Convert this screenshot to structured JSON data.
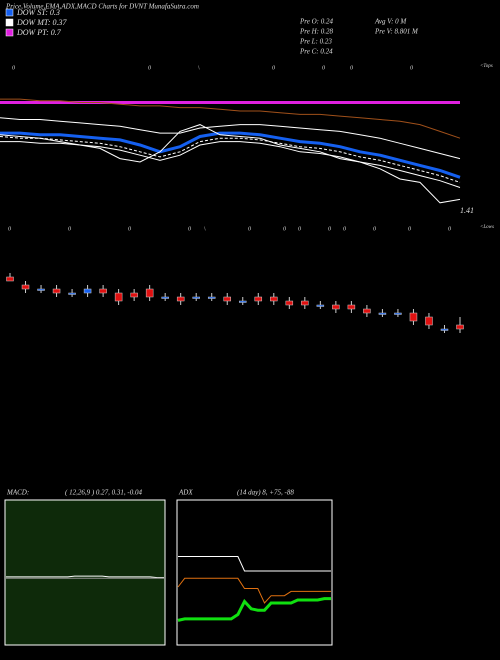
{
  "header": {
    "title": "Price,Volume,EMA,ADX,MACD Charts for DVNT MunafaSutra.com",
    "legend": [
      {
        "name": "DOW ST: 0.3",
        "color": "#1560f0"
      },
      {
        "name": "DOW MT: 0.37",
        "color": "#ffffff"
      },
      {
        "name": "DOW PT: 0.7",
        "color": "#e020e0"
      }
    ],
    "stats": [
      "Pre  O: 0.24",
      "Pre  H: 0.28",
      "Pre  L: 0.23",
      "Pre  C: 0.24"
    ],
    "volume": [
      "Avg  V: 0  M",
      "Pre  V: 8.801 M"
    ]
  },
  "chart_data": [
    {
      "type": "line",
      "ylim": [
        1.3,
        2.3
      ],
      "price_label": "1.41",
      "top_labels": [
        "0",
        "0",
        "\\",
        "0",
        "0",
        "0",
        "0"
      ],
      "top_note": "<Tops",
      "bottom_labels": [
        "0",
        "0",
        "0",
        "0",
        "\\",
        "0",
        "0",
        "0",
        "0",
        "0",
        "0",
        "0",
        "0"
      ],
      "bottom_note": "<Lows",
      "series": [
        {
          "color": "#e020e0",
          "width": 3,
          "values": [
            2.05,
            2.05,
            2.05,
            2.05,
            2.05,
            2.05,
            2.05,
            2.05,
            2.05,
            2.05,
            2.05,
            2.05,
            2.05,
            2.05,
            2.05,
            2.05,
            2.05,
            2.05,
            2.05,
            2.05,
            2.05,
            2.05,
            2.05,
            2.05
          ]
        },
        {
          "color": "#a0501a",
          "width": 1,
          "values": [
            2.07,
            2.07,
            2.06,
            2.06,
            2.05,
            2.05,
            2.04,
            2.03,
            2.03,
            2.02,
            2.02,
            2.01,
            2.0,
            2.0,
            1.99,
            1.98,
            1.98,
            1.97,
            1.96,
            1.95,
            1.94,
            1.92,
            1.88,
            1.84
          ]
        },
        {
          "color": "#ffffff",
          "width": 1,
          "values": [
            1.96,
            1.95,
            1.95,
            1.94,
            1.93,
            1.92,
            1.91,
            1.89,
            1.87,
            1.87,
            1.9,
            1.91,
            1.92,
            1.92,
            1.91,
            1.9,
            1.89,
            1.88,
            1.86,
            1.84,
            1.81,
            1.78,
            1.75,
            1.72
          ]
        },
        {
          "color": "#1560f0",
          "width": 3,
          "values": [
            1.87,
            1.87,
            1.86,
            1.86,
            1.85,
            1.84,
            1.83,
            1.8,
            1.76,
            1.79,
            1.85,
            1.87,
            1.87,
            1.86,
            1.84,
            1.82,
            1.81,
            1.79,
            1.76,
            1.74,
            1.71,
            1.68,
            1.65,
            1.61
          ]
        },
        {
          "color": "#ffffff",
          "width": 1,
          "dash": true,
          "values": [
            1.85,
            1.84,
            1.84,
            1.83,
            1.82,
            1.81,
            1.79,
            1.76,
            1.73,
            1.76,
            1.82,
            1.84,
            1.84,
            1.83,
            1.81,
            1.79,
            1.78,
            1.76,
            1.73,
            1.71,
            1.68,
            1.65,
            1.62,
            1.58
          ]
        },
        {
          "color": "#ffffff",
          "width": 1,
          "values": [
            1.82,
            1.82,
            1.81,
            1.81,
            1.8,
            1.79,
            1.77,
            1.74,
            1.71,
            1.74,
            1.8,
            1.82,
            1.82,
            1.81,
            1.79,
            1.76,
            1.75,
            1.73,
            1.7,
            1.68,
            1.65,
            1.62,
            1.59,
            1.55
          ]
        },
        {
          "color": "#ffffff",
          "width": 1,
          "values": [
            1.86,
            1.85,
            1.84,
            1.82,
            1.8,
            1.78,
            1.72,
            1.7,
            1.76,
            1.88,
            1.92,
            1.86,
            1.85,
            1.84,
            1.8,
            1.78,
            1.76,
            1.72,
            1.7,
            1.66,
            1.6,
            1.58,
            1.46,
            1.48
          ]
        }
      ]
    },
    {
      "type": "candlestick",
      "ylim": [
        0.2,
        0.4
      ],
      "up_color": "#1560f0",
      "down_color": "#e01010",
      "open": [
        0.37,
        0.35,
        0.34,
        0.34,
        0.33,
        0.33,
        0.34,
        0.33,
        0.33,
        0.34,
        0.32,
        0.32,
        0.32,
        0.32,
        0.32,
        0.31,
        0.32,
        0.32,
        0.31,
        0.31,
        0.3,
        0.3,
        0.3,
        0.29,
        0.28,
        0.28,
        0.28,
        0.27,
        0.24,
        0.25
      ],
      "close": [
        0.36,
        0.34,
        0.34,
        0.33,
        0.33,
        0.34,
        0.33,
        0.31,
        0.32,
        0.32,
        0.32,
        0.31,
        0.32,
        0.32,
        0.31,
        0.31,
        0.31,
        0.31,
        0.3,
        0.3,
        0.3,
        0.29,
        0.29,
        0.28,
        0.28,
        0.28,
        0.26,
        0.25,
        0.24,
        0.24
      ],
      "high": [
        0.38,
        0.36,
        0.35,
        0.35,
        0.34,
        0.35,
        0.35,
        0.34,
        0.34,
        0.35,
        0.33,
        0.33,
        0.33,
        0.33,
        0.33,
        0.32,
        0.33,
        0.33,
        0.32,
        0.32,
        0.31,
        0.31,
        0.31,
        0.3,
        0.29,
        0.29,
        0.29,
        0.28,
        0.25,
        0.27
      ],
      "low": [
        0.36,
        0.33,
        0.33,
        0.32,
        0.32,
        0.32,
        0.32,
        0.3,
        0.31,
        0.31,
        0.31,
        0.3,
        0.31,
        0.31,
        0.3,
        0.3,
        0.3,
        0.3,
        0.29,
        0.29,
        0.29,
        0.28,
        0.28,
        0.27,
        0.27,
        0.27,
        0.25,
        0.24,
        0.23,
        0.23
      ]
    },
    {
      "type": "line",
      "title": "MACD:",
      "subtitle": "( 12,26,9 ) 0.27, 0.31, -0.04",
      "ylim": [
        -1,
        1
      ],
      "background": "#0e2a0a",
      "series": [
        {
          "color": "#ffffff",
          "width": 1,
          "values": [
            -0.06,
            -0.06,
            -0.06,
            -0.06,
            -0.06,
            -0.06,
            -0.06,
            -0.06,
            -0.06,
            -0.06,
            -0.05,
            -0.05,
            -0.05,
            -0.05,
            -0.05,
            -0.06,
            -0.06,
            -0.06,
            -0.06,
            -0.06,
            -0.06,
            -0.06,
            -0.07,
            -0.07
          ]
        },
        {
          "color": "#909090",
          "width": 1,
          "values": [
            -0.08,
            -0.08,
            -0.08,
            -0.08,
            -0.08,
            -0.08,
            -0.08,
            -0.08,
            -0.08,
            -0.08,
            -0.08,
            -0.08,
            -0.08,
            -0.08,
            -0.08,
            -0.08,
            -0.08,
            -0.08,
            -0.08,
            -0.08,
            -0.08,
            -0.08,
            -0.08,
            -0.08
          ]
        }
      ]
    },
    {
      "type": "line",
      "title": "ADX",
      "subtitle": "(14  day) 8, +75, -88",
      "ylim": [
        0,
        100
      ],
      "background": "#000000",
      "series": [
        {
          "color": "#ffffff",
          "width": 1,
          "values": [
            61,
            61,
            61,
            61,
            61,
            61,
            61,
            61,
            61,
            61,
            51,
            51,
            51,
            51,
            51,
            51,
            51,
            51,
            51,
            51,
            51,
            51,
            51,
            51
          ]
        },
        {
          "color": "#e07010",
          "width": 1,
          "values": [
            40,
            46,
            46,
            46,
            46,
            46,
            46,
            46,
            46,
            46,
            39,
            39,
            39,
            29,
            34,
            34,
            34,
            37,
            37,
            37,
            37,
            37,
            37,
            37
          ]
        },
        {
          "color": "#10e010",
          "width": 3,
          "values": [
            17,
            18,
            18,
            18,
            18,
            18,
            18,
            18,
            18,
            21,
            30,
            25,
            24,
            24,
            29,
            29,
            29,
            29,
            31,
            31,
            31,
            31,
            32,
            32
          ]
        }
      ]
    }
  ]
}
